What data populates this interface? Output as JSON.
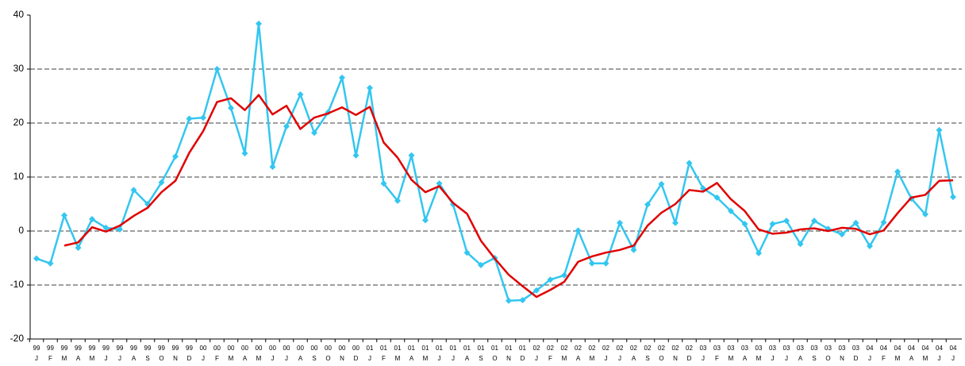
{
  "chart_data": {
    "type": "line",
    "categories": [
      {
        "year": "99",
        "month": "J"
      },
      {
        "year": "99",
        "month": "F"
      },
      {
        "year": "99",
        "month": "M"
      },
      {
        "year": "99",
        "month": "A"
      },
      {
        "year": "99",
        "month": "M"
      },
      {
        "year": "99",
        "month": "J"
      },
      {
        "year": "99",
        "month": "J"
      },
      {
        "year": "99",
        "month": "A"
      },
      {
        "year": "99",
        "month": "S"
      },
      {
        "year": "99",
        "month": "O"
      },
      {
        "year": "99",
        "month": "N"
      },
      {
        "year": "99",
        "month": "D"
      },
      {
        "year": "00",
        "month": "J"
      },
      {
        "year": "00",
        "month": "F"
      },
      {
        "year": "00",
        "month": "M"
      },
      {
        "year": "00",
        "month": "A"
      },
      {
        "year": "00",
        "month": "M"
      },
      {
        "year": "00",
        "month": "J"
      },
      {
        "year": "00",
        "month": "J"
      },
      {
        "year": "00",
        "month": "A"
      },
      {
        "year": "00",
        "month": "S"
      },
      {
        "year": "00",
        "month": "O"
      },
      {
        "year": "00",
        "month": "N"
      },
      {
        "year": "00",
        "month": "D"
      },
      {
        "year": "01",
        "month": "J"
      },
      {
        "year": "01",
        "month": "F"
      },
      {
        "year": "01",
        "month": "M"
      },
      {
        "year": "01",
        "month": "A"
      },
      {
        "year": "01",
        "month": "M"
      },
      {
        "year": "01",
        "month": "J"
      },
      {
        "year": "01",
        "month": "J"
      },
      {
        "year": "01",
        "month": "A"
      },
      {
        "year": "01",
        "month": "S"
      },
      {
        "year": "01",
        "month": "O"
      },
      {
        "year": "01",
        "month": "N"
      },
      {
        "year": "01",
        "month": "D"
      },
      {
        "year": "02",
        "month": "J"
      },
      {
        "year": "02",
        "month": "F"
      },
      {
        "year": "02",
        "month": "M"
      },
      {
        "year": "02",
        "month": "A"
      },
      {
        "year": "02",
        "month": "M"
      },
      {
        "year": "02",
        "month": "J"
      },
      {
        "year": "02",
        "month": "J"
      },
      {
        "year": "02",
        "month": "A"
      },
      {
        "year": "02",
        "month": "S"
      },
      {
        "year": "02",
        "month": "O"
      },
      {
        "year": "02",
        "month": "N"
      },
      {
        "year": "02",
        "month": "D"
      },
      {
        "year": "03",
        "month": "J"
      },
      {
        "year": "03",
        "month": "F"
      },
      {
        "year": "03",
        "month": "M"
      },
      {
        "year": "03",
        "month": "A"
      },
      {
        "year": "03",
        "month": "M"
      },
      {
        "year": "03",
        "month": "J"
      },
      {
        "year": "03",
        "month": "J"
      },
      {
        "year": "03",
        "month": "A"
      },
      {
        "year": "03",
        "month": "S"
      },
      {
        "year": "03",
        "month": "O"
      },
      {
        "year": "03",
        "month": "N"
      },
      {
        "year": "03",
        "month": "D"
      },
      {
        "year": "04",
        "month": "J"
      },
      {
        "year": "04",
        "month": "F"
      },
      {
        "year": "04",
        "month": "M"
      },
      {
        "year": "04",
        "month": "A"
      },
      {
        "year": "04",
        "month": "M"
      },
      {
        "year": "04",
        "month": "J"
      },
      {
        "year": "04",
        "month": "J"
      }
    ],
    "series": [
      {
        "color": "#33c6f0",
        "marker": "diamond",
        "values": [
          -5.1,
          -6,
          2.9,
          -3.1,
          2.2,
          0.6,
          0.3,
          7.6,
          5,
          9,
          13.8,
          20.8,
          21,
          30,
          22.8,
          14.4,
          38.4,
          11.9,
          19.4,
          25.3,
          18.2,
          22,
          28.4,
          14,
          26.5,
          8.8,
          5.6,
          14,
          2,
          8.8,
          4.9,
          -4,
          -6.3,
          -5,
          -12.9,
          -12.8,
          -11,
          -9,
          -8.2,
          0.1,
          -6,
          -6,
          1.5,
          -3.5,
          4.9,
          8.7,
          1.5,
          12.6,
          7.9,
          6.2,
          3.7,
          1.3,
          -4.1,
          1.3,
          1.9,
          -2.4,
          1.9,
          0.4,
          -0.6,
          1.5,
          -2.8,
          1.6,
          11,
          6,
          3.1,
          18.7,
          6.3
        ]
      },
      {
        "color": "#e00000",
        "values": [
          null,
          null,
          -2.7,
          -2.1,
          0.7,
          -0.1,
          1.0,
          2.8,
          4.3,
          7.2,
          9.3,
          14.5,
          18.5,
          23.9,
          24.6,
          22.4,
          25.2,
          21.6,
          23.2,
          18.9,
          21.0,
          21.8,
          22.9,
          21.5,
          23.0,
          16.4,
          13.6,
          9.5,
          7.2,
          8.3,
          5.2,
          3.2,
          -1.8,
          -5.1,
          -8.1,
          -10.2,
          -12.2,
          -10.9,
          -9.4,
          -5.7,
          -4.7,
          -4.0,
          -3.5,
          -2.7,
          1.0,
          3.4,
          5.0,
          7.6,
          7.3,
          8.9,
          5.9,
          3.7,
          0.3,
          -0.5,
          -0.3,
          0.3,
          0.5,
          0.0,
          0.6,
          0.4,
          -0.6,
          0.1,
          3.3,
          6.2,
          6.7,
          9.3,
          9.4
        ]
      }
    ],
    "ylim": [
      -20,
      40
    ],
    "yticks": [
      -20,
      -10,
      0,
      10,
      20,
      30,
      40
    ],
    "grid": true
  }
}
